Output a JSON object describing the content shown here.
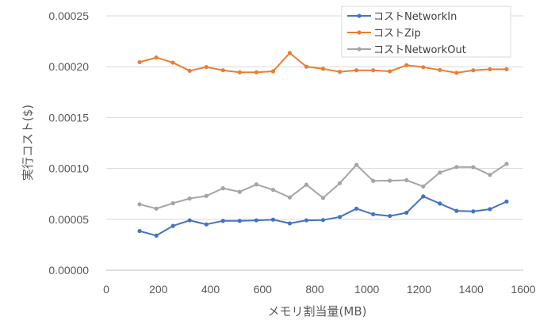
{
  "chart_data": {
    "type": "line",
    "title": "",
    "xlabel": "メモリ割当量(MB)",
    "ylabel": "実行コスト($)",
    "xlim": [
      0,
      1600
    ],
    "ylim": [
      0,
      0.00025
    ],
    "x_ticks": [
      "0",
      "200",
      "400",
      "600",
      "800",
      "1000",
      "1200",
      "1400",
      "1600"
    ],
    "y_ticks": [
      "0.00000",
      "0.00005",
      "0.00010",
      "0.00015",
      "0.00020",
      "0.00025"
    ],
    "grid": true,
    "legend_position": "top-right",
    "x": [
      128,
      192,
      256,
      320,
      384,
      448,
      512,
      576,
      640,
      704,
      768,
      832,
      896,
      960,
      1024,
      1088,
      1152,
      1216,
      1280,
      1344,
      1408,
      1472,
      1536
    ],
    "series": [
      {
        "name": "コストNetworkIn",
        "color": "#4472c4",
        "values": [
          3.85e-05,
          3.4e-05,
          4.35e-05,
          4.9e-05,
          4.5e-05,
          4.85e-05,
          4.85e-05,
          4.9e-05,
          4.97e-05,
          4.6e-05,
          4.9e-05,
          4.93e-05,
          5.23e-05,
          6.05e-05,
          5.5e-05,
          5.33e-05,
          5.65e-05,
          7.25e-05,
          6.55e-05,
          5.83e-05,
          5.78e-05,
          6e-05,
          6.75e-05
        ]
      },
      {
        "name": "コストZip",
        "color": "#ed7d31",
        "values": [
          0.0002045,
          0.000209,
          0.000204,
          0.000196,
          0.0001997,
          0.0001965,
          0.0001945,
          0.0001945,
          0.0001955,
          0.0002135,
          0.0002,
          0.000198,
          0.000195,
          0.0001965,
          0.0001965,
          0.0001955,
          0.0002015,
          0.0001995,
          0.0001968,
          0.000194,
          0.0001965,
          0.0001975,
          0.0001975
        ]
      },
      {
        "name": "コストNetworkOut",
        "color": "#a5a5a5",
        "values": [
          6.48e-05,
          6.05e-05,
          6.58e-05,
          7.05e-05,
          7.3e-05,
          8.05e-05,
          7.7e-05,
          8.43e-05,
          7.9e-05,
          7.15e-05,
          8.4e-05,
          7.1e-05,
          8.55e-05,
          0.0001035,
          8.78e-05,
          8.8e-05,
          8.85e-05,
          8.23e-05,
          9.6e-05,
          0.0001015,
          0.0001013,
          9.37e-05,
          0.0001045
        ]
      }
    ]
  }
}
